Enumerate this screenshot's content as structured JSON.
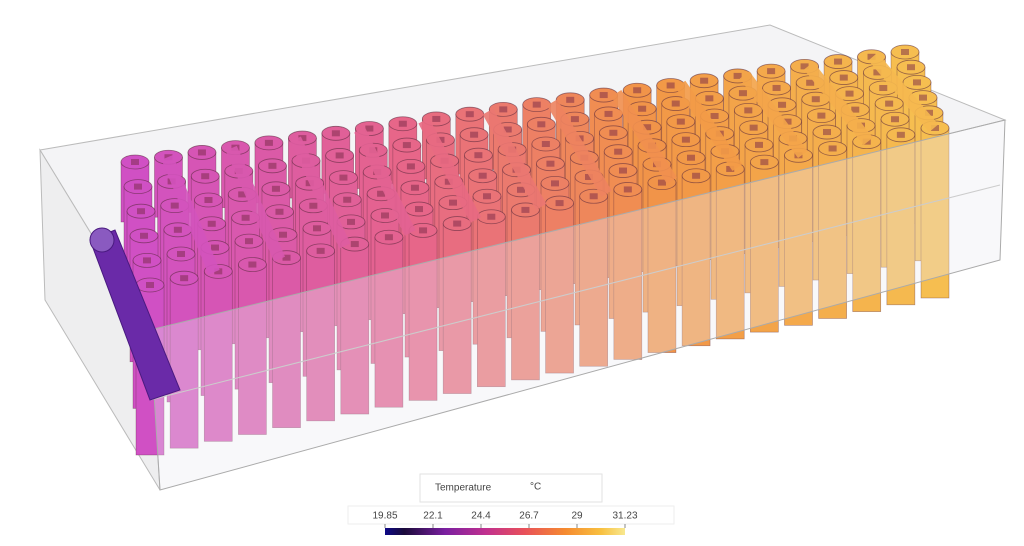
{
  "legend": {
    "title": "Temperature",
    "unit": "°C",
    "ticks": [
      19.85,
      22.1,
      24.4,
      26.7,
      29,
      31.23
    ]
  }
}
